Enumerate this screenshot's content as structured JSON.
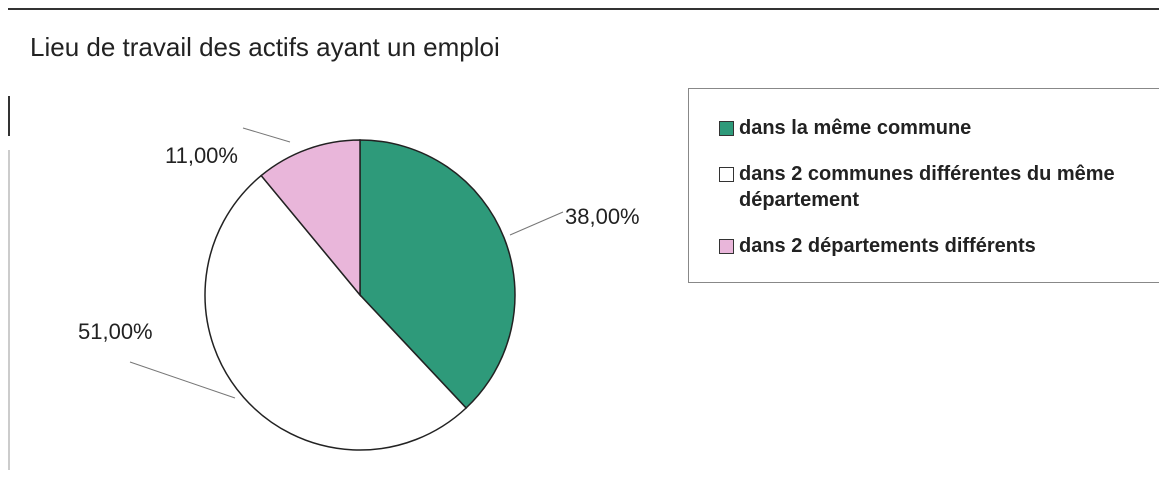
{
  "chart_data": {
    "type": "pie",
    "title": "Lieu de travail des actifs ayant un emploi",
    "categories": [
      "dans la même commune",
      "dans 2 communes différentes du même département",
      "dans 2 départements différents"
    ],
    "values": [
      38,
      51,
      11
    ],
    "value_labels": [
      "38,00%",
      "51,00%",
      "11,00%"
    ],
    "colors": [
      "#2e9a7a",
      "#ffffff",
      "#e9b6da"
    ]
  }
}
